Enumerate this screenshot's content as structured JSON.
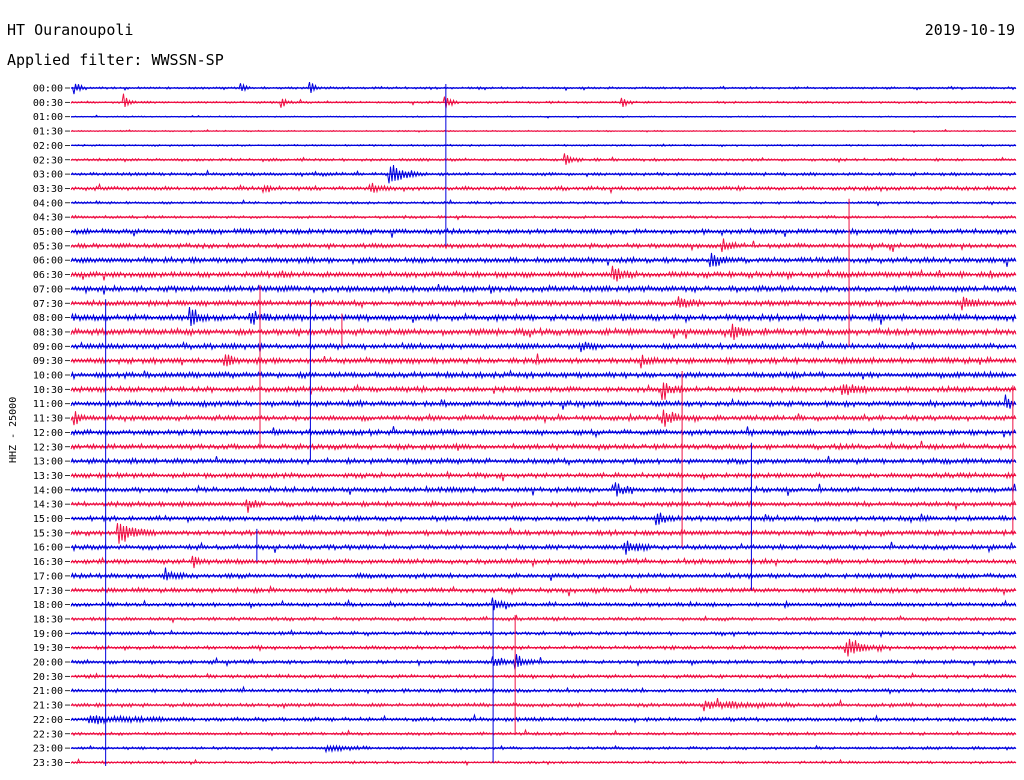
{
  "header": {
    "station": "HT Ouranoupoli",
    "date": "2019-10-19",
    "filter": "Applied filter: WWSSN-SP"
  },
  "colors": {
    "even": "#0000dd",
    "odd": "#ee1044",
    "axis": "#000000"
  },
  "chart_data": {
    "type": "line",
    "title": "HT Ouranoupoli",
    "ylabel": "HHZ - 25000",
    "rows": [
      "00:00",
      "00:30",
      "01:00",
      "01:30",
      "02:00",
      "02:30",
      "03:00",
      "03:30",
      "04:00",
      "04:30",
      "05:00",
      "05:30",
      "06:00",
      "06:30",
      "07:00",
      "07:30",
      "08:00",
      "08:30",
      "09:00",
      "09:30",
      "10:00",
      "10:30",
      "11:00",
      "11:30",
      "12:00",
      "12:30",
      "13:00",
      "13:30",
      "14:00",
      "14:30",
      "15:00",
      "15:30",
      "16:00",
      "16:30",
      "17:00",
      "17:30",
      "18:00",
      "18:30",
      "19:00",
      "19:30",
      "20:00",
      "20:30",
      "21:00",
      "21:30",
      "22:00",
      "22:30",
      "23:00",
      "23:30"
    ],
    "row_minutes": 30,
    "noise": [
      1,
      1,
      0.6,
      0.6,
      0.8,
      1.3,
      1.5,
      1.8,
      1.2,
      1.3,
      2.4,
      2.2,
      2.6,
      2.8,
      2.8,
      2.6,
      3,
      3,
      2.6,
      2.7,
      2.7,
      2.6,
      2.6,
      2.4,
      2.5,
      2.5,
      2.5,
      2.4,
      2.3,
      2.3,
      2.4,
      2.4,
      2.3,
      2.3,
      2.2,
      2.2,
      1.9,
      1.7,
      1.7,
      1.7,
      1.8,
      1.7,
      1.7,
      1.8,
      1.8,
      1.4,
      1.3,
      1.2
    ],
    "events": [
      {
        "row": 0,
        "minute": 0.1,
        "amp": 8,
        "dur": 0.4
      },
      {
        "row": 0,
        "minute": 5.4,
        "amp": 6,
        "dur": 0.3
      },
      {
        "row": 0,
        "minute": 7.6,
        "amp": 9,
        "dur": 0.4
      },
      {
        "row": 1,
        "minute": 1.7,
        "amp": 8,
        "dur": 0.4
      },
      {
        "row": 1,
        "minute": 6.7,
        "amp": 6,
        "dur": 0.3
      },
      {
        "row": 1,
        "minute": 11.9,
        "amp": 8,
        "dur": 0.4
      },
      {
        "row": 1,
        "minute": 17.5,
        "amp": 8,
        "dur": 0.4
      },
      {
        "row": 5,
        "minute": 15.7,
        "amp": 7,
        "dur": 0.5
      },
      {
        "row": 6,
        "minute": 10.1,
        "amp": 14,
        "dur": 1.2
      },
      {
        "row": 7,
        "minute": 6.1,
        "amp": 6,
        "dur": 0.6
      },
      {
        "row": 7,
        "minute": 9.5,
        "amp": 5,
        "dur": 0.8
      },
      {
        "row": 11,
        "minute": 20.7,
        "amp": 7,
        "dur": 0.6
      },
      {
        "row": 12,
        "minute": 20.3,
        "amp": 9,
        "dur": 0.8
      },
      {
        "row": 13,
        "minute": 17.2,
        "amp": 8,
        "dur": 0.8
      },
      {
        "row": 15,
        "minute": 19.3,
        "amp": 9,
        "dur": 0.7
      },
      {
        "row": 15,
        "minute": 28.3,
        "amp": 9,
        "dur": 0.8
      },
      {
        "row": 16,
        "minute": 3.8,
        "amp": 12,
        "dur": 0.6
      },
      {
        "row": 16,
        "minute": 5.7,
        "amp": 10,
        "dur": 0.6
      },
      {
        "row": 17,
        "minute": 21.0,
        "amp": 8,
        "dur": 0.6
      },
      {
        "row": 18,
        "minute": 16.2,
        "amp": 6,
        "dur": 0.8
      },
      {
        "row": 19,
        "minute": 4.9,
        "amp": 7,
        "dur": 0.6
      },
      {
        "row": 19,
        "minute": 18.1,
        "amp": 6,
        "dur": 0.8
      },
      {
        "row": 21,
        "minute": 18.8,
        "amp": 14,
        "dur": 0.6
      },
      {
        "row": 21,
        "minute": 24.5,
        "amp": 7,
        "dur": 1.0
      },
      {
        "row": 22,
        "minute": 29.7,
        "amp": 10,
        "dur": 0.3
      },
      {
        "row": 23,
        "minute": 0.1,
        "amp": 10,
        "dur": 0.4
      },
      {
        "row": 23,
        "minute": 18.8,
        "amp": 12,
        "dur": 0.8
      },
      {
        "row": 28,
        "minute": 17.3,
        "amp": 9,
        "dur": 0.6
      },
      {
        "row": 29,
        "minute": 5.6,
        "amp": 8,
        "dur": 0.5
      },
      {
        "row": 30,
        "minute": 18.6,
        "amp": 8,
        "dur": 0.6
      },
      {
        "row": 31,
        "minute": 1.5,
        "amp": 12,
        "dur": 1.2
      },
      {
        "row": 32,
        "minute": 17.6,
        "amp": 9,
        "dur": 0.8
      },
      {
        "row": 33,
        "minute": 3.9,
        "amp": 7,
        "dur": 0.5
      },
      {
        "row": 34,
        "minute": 3.0,
        "amp": 5,
        "dur": 0.8
      },
      {
        "row": 36,
        "minute": 13.4,
        "amp": 7,
        "dur": 0.6
      },
      {
        "row": 39,
        "minute": 24.6,
        "amp": 14,
        "dur": 1.2
      },
      {
        "row": 40,
        "minute": 13.4,
        "amp": 9,
        "dur": 0.6
      },
      {
        "row": 40,
        "minute": 14.1,
        "amp": 9,
        "dur": 0.6
      },
      {
        "row": 43,
        "minute": 20.1,
        "amp": 5,
        "dur": 3.0
      },
      {
        "row": 44,
        "minute": 0.6,
        "amp": 5,
        "dur": 3.0
      },
      {
        "row": 46,
        "minute": 8.1,
        "amp": 5,
        "dur": 1.5
      }
    ],
    "spikes": [
      {
        "minute": 11.9,
        "from_row": 0,
        "to_row": 11
      },
      {
        "minute": 6.0,
        "from_row": 14,
        "to_row": 25
      },
      {
        "minute": 7.6,
        "from_row": 15,
        "to_row": 26
      },
      {
        "minute": 8.6,
        "from_row": 16,
        "to_row": 18
      },
      {
        "minute": 1.1,
        "from_row": 15,
        "to_row": 49
      },
      {
        "minute": 19.4,
        "from_row": 20,
        "to_row": 32
      },
      {
        "minute": 21.6,
        "from_row": 25,
        "to_row": 35
      },
      {
        "minute": 24.7,
        "from_row": 8,
        "to_row": 18
      },
      {
        "minute": 13.4,
        "from_row": 36,
        "to_row": 47
      },
      {
        "minute": 14.1,
        "from_row": 37,
        "to_row": 45
      },
      {
        "minute": 5.9,
        "from_row": 31,
        "to_row": 33
      },
      {
        "minute": 29.9,
        "from_row": 21,
        "to_row": 31
      }
    ]
  }
}
